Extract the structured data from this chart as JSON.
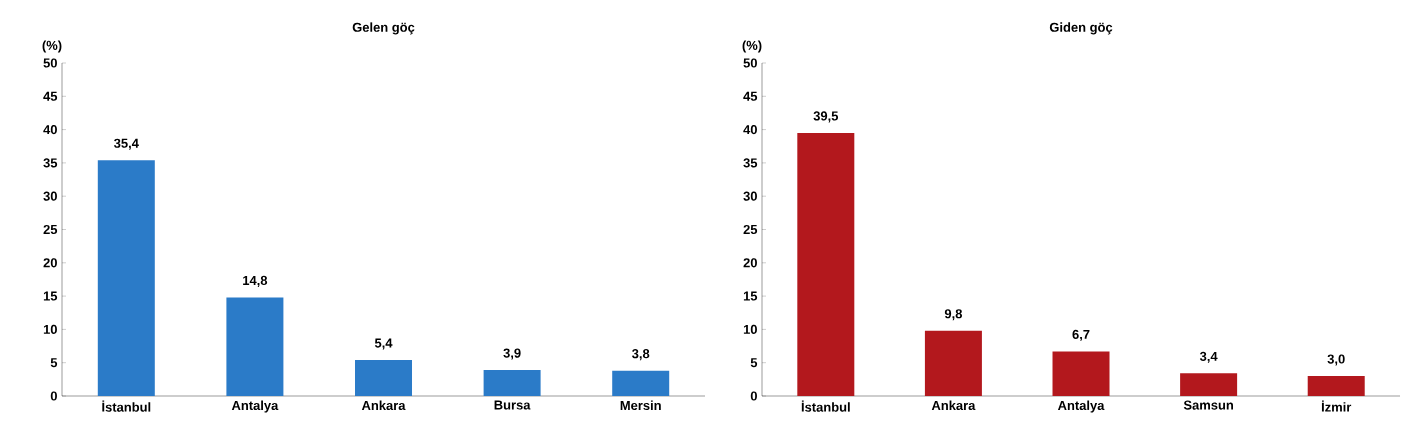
{
  "chart_data": [
    {
      "type": "bar",
      "title": "Gelen göç",
      "ylabel": "(%)",
      "categories": [
        "İstanbul",
        "Antalya",
        "Ankara",
        "Bursa",
        "Mersin"
      ],
      "values": [
        35.4,
        14.8,
        5.4,
        3.9,
        3.8
      ],
      "value_labels": [
        "35,4",
        "14,8",
        "5,4",
        "3,9",
        "3,8"
      ],
      "color": "#2b7bc8",
      "ylim": [
        0,
        50
      ],
      "yticks": [
        0,
        5,
        10,
        15,
        20,
        25,
        30,
        35,
        40,
        45,
        50
      ]
    },
    {
      "type": "bar",
      "title": "Giden göç",
      "ylabel": "(%)",
      "categories": [
        "İstanbul",
        "Ankara",
        "Antalya",
        "Samsun",
        "İzmir"
      ],
      "values": [
        39.5,
        9.8,
        6.7,
        3.4,
        3.0
      ],
      "value_labels": [
        "39,5",
        "9,8",
        "6,7",
        "3,4",
        "3,0"
      ],
      "color": "#b3181d",
      "ylim": [
        0,
        50
      ],
      "yticks": [
        0,
        5,
        10,
        15,
        20,
        25,
        30,
        35,
        40,
        45,
        50
      ]
    }
  ]
}
